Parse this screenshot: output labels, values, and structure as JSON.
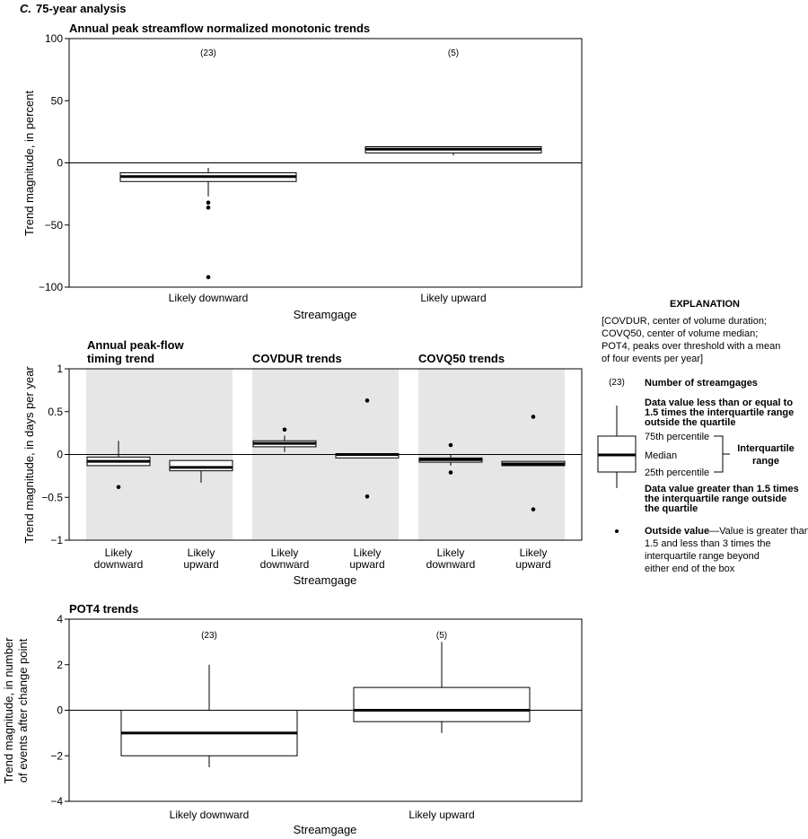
{
  "figure": {
    "label": "C.",
    "title": "75-year analysis"
  },
  "chart_data": [
    {
      "type": "box",
      "title": "Annual peak streamflow normalized monotonic trends",
      "ylabel": "Trend magnitude, in percent",
      "xlabel": "Streamgage",
      "ylim": [
        -100,
        100
      ],
      "yticks": [
        100,
        50,
        0,
        -50,
        -100
      ],
      "ytick_labels": [
        "100",
        "50",
        "0",
        "−50",
        "−100"
      ],
      "zero_line": true,
      "categories": [
        "Likely downward",
        "Likely upward"
      ],
      "boxes": [
        {
          "category": "Likely downward",
          "count": "(23)",
          "q1": -15,
          "median": -11,
          "q3": -8,
          "whisker_low": -27,
          "whisker_high": -4,
          "outliers": [
            -32,
            -36,
            -92
          ]
        },
        {
          "category": "Likely upward",
          "count": "(5)",
          "q1": 8,
          "median": 11,
          "q3": 13,
          "whisker_low": 6,
          "whisker_high": 13,
          "outliers": []
        }
      ]
    },
    {
      "type": "box",
      "ylabel": "Trend magnitude, in days per year",
      "xlabel": "Streamgage",
      "ylim": [
        -1,
        1
      ],
      "yticks": [
        1,
        0.5,
        0,
        -0.5,
        -1
      ],
      "ytick_labels": [
        "1",
        "0.5",
        "0",
        "−0.5",
        "−1"
      ],
      "zero_line": true,
      "groups": [
        {
          "title_lines": [
            "Annual peak-flow",
            "timing trend"
          ],
          "boxes": [
            {
              "category_lines": [
                "Likely",
                "downward"
              ],
              "q1": -0.13,
              "median": -0.08,
              "q3": -0.03,
              "whisker_low": -0.13,
              "whisker_high": 0.16,
              "outliers": [
                -0.38
              ]
            },
            {
              "category_lines": [
                "Likely",
                "upward"
              ],
              "q1": -0.19,
              "median": -0.15,
              "q3": -0.07,
              "whisker_low": -0.33,
              "whisker_high": -0.07,
              "outliers": []
            }
          ]
        },
        {
          "title_lines": [
            "COVDUR trends"
          ],
          "boxes": [
            {
              "category_lines": [
                "Likely",
                "downward"
              ],
              "q1": 0.09,
              "median": 0.13,
              "q3": 0.16,
              "whisker_low": 0.03,
              "whisker_high": 0.22,
              "outliers": [
                0.29
              ]
            },
            {
              "category_lines": [
                "Likely",
                "upward"
              ],
              "q1": -0.04,
              "median": 0.0,
              "q3": 0.01,
              "whisker_low": -0.04,
              "whisker_high": 0.01,
              "outliers": [
                0.63,
                -0.49
              ]
            }
          ]
        },
        {
          "title_lines": [
            "COVQ50 trends"
          ],
          "boxes": [
            {
              "category_lines": [
                "Likely",
                "downward"
              ],
              "q1": -0.09,
              "median": -0.06,
              "q3": -0.04,
              "whisker_low": -0.13,
              "whisker_high": 0.0,
              "outliers": [
                0.11,
                -0.21
              ]
            },
            {
              "category_lines": [
                "Likely",
                "upward"
              ],
              "q1": -0.13,
              "median": -0.11,
              "q3": -0.08,
              "whisker_low": -0.13,
              "whisker_high": -0.08,
              "outliers": [
                0.44,
                -0.64
              ]
            }
          ]
        }
      ]
    },
    {
      "type": "box",
      "title": "POT4 trends",
      "ylabel_lines": [
        "Trend magnitude, in number",
        "of events after change point"
      ],
      "xlabel": "Streamgage",
      "ylim": [
        -4,
        4
      ],
      "yticks": [
        4,
        2,
        0,
        -2,
        -4
      ],
      "ytick_labels": [
        "4",
        "2",
        "0",
        "−2",
        "−4"
      ],
      "zero_line": true,
      "categories": [
        "Likely downward",
        "Likely upward"
      ],
      "boxes": [
        {
          "category": "Likely downward",
          "count": "(23)",
          "q1": -2,
          "median": -1,
          "q3": 0,
          "whisker_low": -2.5,
          "whisker_high": 2,
          "outliers": []
        },
        {
          "category": "Likely upward",
          "count": "(5)",
          "q1": -0.5,
          "median": 0,
          "q3": 1,
          "whisker_low": -1,
          "whisker_high": 3,
          "outliers": []
        }
      ]
    }
  ],
  "explanation": {
    "heading": "EXPLANATION",
    "abbrev_lines": [
      "[COVDUR, center of volume duration;",
      "COVQ50, center of volume median;",
      "POT4, peaks over threshold with a mean",
      "of four events per year]"
    ],
    "count_sample": "(23)",
    "count_label": "Number of streamgages",
    "upper_whisker_lines": [
      "Data value less than or equal to",
      "1.5 times the interquartile range",
      "outside the quartile"
    ],
    "p75": "75th percentile",
    "median": "Median",
    "p25": "25th percentile",
    "iqr_lines": [
      "Interquartile",
      "range"
    ],
    "lower_whisker_lines": [
      "Data value greater than 1.5 times",
      "the interquartile range outside",
      "the quartile"
    ],
    "outside_bold": "Outside value",
    "outside_lines": [
      "—Value is greater than",
      "1.5 and less than 3 times the",
      "interquartile range beyond",
      "either end of the box"
    ]
  }
}
